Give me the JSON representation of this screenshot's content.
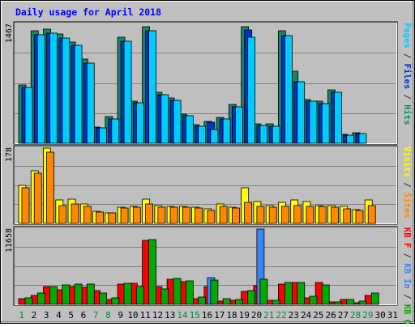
{
  "chart_data": {
    "type": "bar",
    "title": "Daily usage for April 2018",
    "categories": [
      "1",
      "2",
      "3",
      "4",
      "5",
      "6",
      "7",
      "8",
      "9",
      "10",
      "11",
      "12",
      "13",
      "14",
      "15",
      "16",
      "17",
      "18",
      "19",
      "20",
      "21",
      "22",
      "23",
      "24",
      "25",
      "26",
      "27",
      "28",
      "29",
      "30",
      "31"
    ],
    "weekend_days": [
      "1",
      "7",
      "8",
      "14",
      "15",
      "21",
      "22",
      "28",
      "29"
    ],
    "panels": [
      {
        "name": "top",
        "max_label": "1467",
        "ymax": 1467,
        "grid": true,
        "legend": [
          {
            "text": "Pages",
            "color": "#00ccff"
          },
          {
            "text": " / ",
            "color": "#333333"
          },
          {
            "text": "Files",
            "color": "#0033cc"
          },
          {
            "text": " / ",
            "color": "#333333"
          },
          {
            "text": "Hits",
            "color": "#118866"
          }
        ],
        "series": [
          {
            "name": "Hits",
            "color": "#118866",
            "values": [
              720,
              1390,
              1410,
              1350,
              1250,
              1040,
              200,
              330,
              1310,
              520,
              1440,
              630,
              560,
              360,
              230,
              270,
              320,
              480,
              1440,
              240,
              240,
              1390,
              890,
              540,
              520,
              660,
              110,
              130,
              0,
              0,
              0
            ]
          },
          {
            "name": "Files",
            "color": "#0033cc",
            "values": [
              690,
              1340,
              1360,
              1300,
              1210,
              990,
              190,
              300,
              1260,
              500,
              1390,
              600,
              530,
              340,
              210,
              260,
              300,
              450,
              1400,
              220,
              210,
              1330,
              760,
              520,
              490,
              630,
              95,
              115,
              0,
              0,
              0
            ]
          },
          {
            "name": "Pages",
            "color": "#00ccff",
            "values": [
              690,
              1340,
              1360,
              1300,
              1210,
              990,
              190,
              300,
              1260,
              500,
              1390,
              600,
              530,
              340,
              210,
              170,
              300,
              450,
              1310,
              220,
              210,
              1330,
              760,
              520,
              490,
              630,
              95,
              115,
              0,
              0,
              0
            ]
          }
        ]
      },
      {
        "name": "middle",
        "max_label": "178",
        "ymax": 178,
        "grid": true,
        "legend": [
          {
            "text": "Visits",
            "color": "#ffff00"
          },
          {
            "text": " / ",
            "color": "#333333"
          },
          {
            "text": "Sites",
            "color": "#ff8800"
          }
        ],
        "series": [
          {
            "name": "Visits",
            "color": "#ffff00",
            "values": [
              90,
              125,
              178,
              55,
              57,
              45,
              28,
              25,
              38,
              40,
              58,
              42,
              40,
              40,
              38,
              35,
              45,
              38,
              85,
              52,
              42,
              50,
              55,
              52,
              43,
              42,
              40,
              33,
              55,
              0,
              0
            ]
          },
          {
            "name": "Sites",
            "color": "#ff8800",
            "values": [
              84,
              118,
              168,
              42,
              45,
              40,
              27,
              24,
              36,
              38,
              45,
              38,
              38,
              38,
              36,
              30,
              40,
              36,
              50,
              40,
              38,
              40,
              42,
              41,
              40,
              38,
              35,
              30,
              42,
              0,
              0
            ]
          }
        ]
      },
      {
        "name": "bottom",
        "max_label": "11658",
        "ymax": 11658,
        "grid": true,
        "legend": [
          {
            "text": "KB F",
            "color": "#ff0000"
          },
          {
            "text": " / ",
            "color": "#333333"
          },
          {
            "text": "KB In",
            "color": "#3388ff"
          },
          {
            "text": " / ",
            "color": "#333333"
          },
          {
            "text": "KB Out",
            "color": "#00aa00"
          }
        ],
        "series": [
          {
            "name": "KB F",
            "color": "#ff0000",
            "values": [
              900,
              1350,
              2700,
              2300,
              2800,
              2600,
              2100,
              700,
              3100,
              3200,
              9900,
              2800,
              3850,
              3450,
              830,
              2750,
              510,
              640,
              1950,
              2850,
              650,
              3150,
              3330,
              1030,
              3330,
              420,
              750,
              210,
              1390,
              0,
              0
            ]
          },
          {
            "name": "KB In",
            "color": "#3388ff",
            "values": [
              0,
              0,
              0,
              0,
              0,
              0,
              0,
              0,
              0,
              0,
              0,
              0,
              0,
              0,
              0,
              4100,
              0,
              0,
              0,
              11658,
              0,
              0,
              0,
              0,
              0,
              0,
              0,
              0,
              0,
              0,
              0
            ]
          },
          {
            "name": "KB Out",
            "color": "#00aa00",
            "values": [
              1050,
              1800,
              2700,
              2950,
              3150,
              3100,
              1700,
              950,
              3300,
              2750,
              10000,
              2350,
              3950,
              3650,
              1100,
              3700,
              860,
              700,
              2150,
              3900,
              650,
              3350,
              3350,
              1250,
              3050,
              350,
              720,
              450,
              1800,
              0,
              0
            ]
          }
        ]
      }
    ]
  }
}
